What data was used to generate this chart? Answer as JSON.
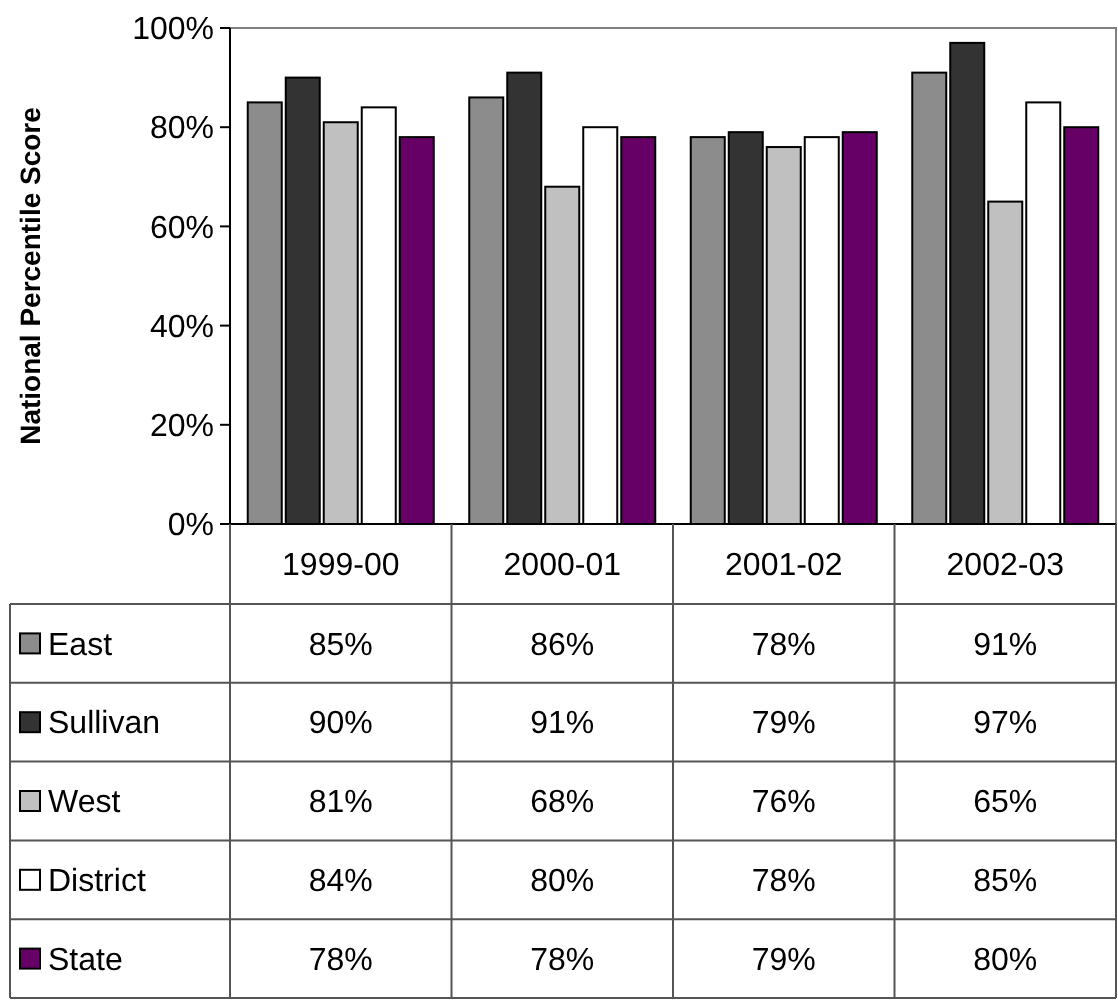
{
  "chart_data": {
    "type": "bar",
    "ylabel": "National Percentile Score",
    "categories": [
      "1999-00",
      "2000-01",
      "2001-02",
      "2002-03"
    ],
    "series": [
      {
        "name": "East",
        "color": "#8c8c8c",
        "values": [
          85,
          86,
          78,
          91
        ],
        "value_labels": [
          "85%",
          "86%",
          "78%",
          "91%"
        ]
      },
      {
        "name": "Sullivan",
        "color": "#333333",
        "values": [
          90,
          91,
          79,
          97
        ],
        "value_labels": [
          "90%",
          "91%",
          "79%",
          "97%"
        ]
      },
      {
        "name": "West",
        "color": "#c0c0c0",
        "values": [
          81,
          68,
          76,
          65
        ],
        "value_labels": [
          "81%",
          "68%",
          "76%",
          "65%"
        ]
      },
      {
        "name": "District",
        "color": "#ffffff",
        "values": [
          84,
          80,
          78,
          85
        ],
        "value_labels": [
          "84%",
          "80%",
          "78%",
          "85%"
        ]
      },
      {
        "name": "State",
        "color": "#660066",
        "values": [
          78,
          78,
          79,
          80
        ],
        "value_labels": [
          "78%",
          "78%",
          "79%",
          "80%"
        ]
      }
    ],
    "ylim": [
      0,
      100
    ],
    "yticks": [
      {
        "value": 0,
        "label": "0%"
      },
      {
        "value": 20,
        "label": "20%"
      },
      {
        "value": 40,
        "label": "40%"
      },
      {
        "value": 60,
        "label": "60%"
      },
      {
        "value": 80,
        "label": "80%"
      },
      {
        "value": 100,
        "label": "100%"
      }
    ],
    "grid": false,
    "legend": "bottom"
  }
}
